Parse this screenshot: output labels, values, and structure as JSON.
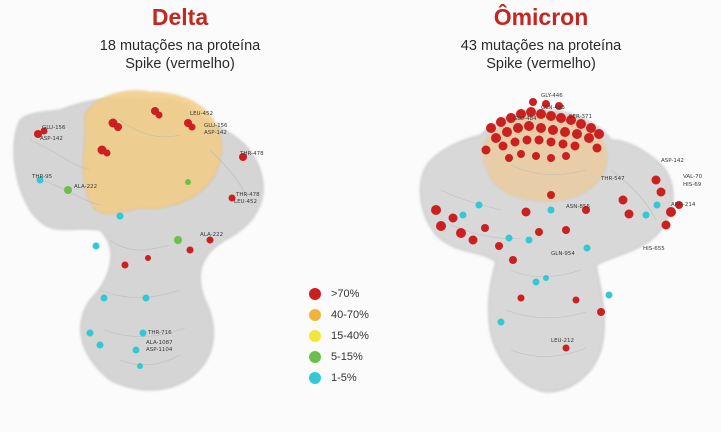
{
  "colors": {
    "title_red": "#c4271f",
    "high": "#cc1f1f",
    "mid_high": "#f0b43c",
    "mid": "#f3e63a",
    "low": "#6cbf4a",
    "lowest": "#33c8d6",
    "protein_grey": "#c9c9c9"
  },
  "panels": {
    "delta": {
      "title": "Delta",
      "subtitle_line1": "18 mutações na proteína",
      "subtitle_line2": "Spike (vermelho)",
      "residue_labels": [
        "GLU-156",
        "ASP-142",
        "THR-95",
        "ALA-222",
        "THR-478",
        "LEU-452",
        "GLU-156",
        "ASP-142",
        "THR-478",
        "LEU-452",
        "ALA-222",
        "THR-716",
        "ALA-1087",
        "ASP-1104"
      ]
    },
    "omicron": {
      "title": "Ômicron",
      "subtitle_line1": "43 mutações na proteína",
      "subtitle_line2": "Spike (vermelho)",
      "residue_labels": [
        "GLY-446",
        "GLN-493",
        "SER-371",
        "GLU-484",
        "ASP-142",
        "THR-547",
        "VAL-70",
        "HIS-69",
        "ARG-214",
        "HIS-655",
        "GLN-954",
        "ASN-856",
        "LEU-212"
      ]
    }
  },
  "legend": [
    {
      "label": ">70%",
      "color": "#cc1f1f"
    },
    {
      "label": "40-70%",
      "color": "#f0b43c"
    },
    {
      "label": "15-40%",
      "color": "#f3e63a"
    },
    {
      "label": "5-15%",
      "color": "#6cbf4a"
    },
    {
      "label": "1-5%",
      "color": "#33c8d6"
    }
  ]
}
